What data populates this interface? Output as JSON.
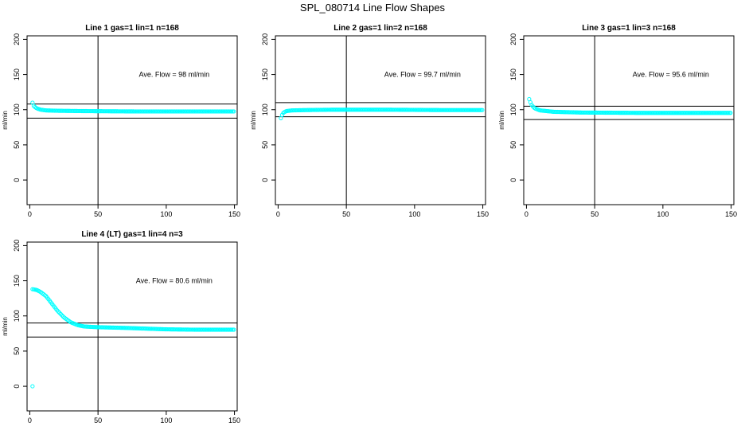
{
  "figure": {
    "title": "SPL_080714  Line Flow Shapes"
  },
  "chart_data": [
    {
      "type": "scatter",
      "title": "Line 1 gas=1 lin=1 n=168",
      "xlabel": "",
      "ylabel": "ml/min",
      "xlim": [
        -2,
        152
      ],
      "ylim": [
        -35,
        205
      ],
      "xticks": [
        0,
        50,
        100,
        150
      ],
      "yticks": [
        0,
        50,
        100,
        150,
        200
      ],
      "annotation": "Ave. Flow =  98  ml/min",
      "vline": 50,
      "hlines": [
        108,
        88
      ],
      "point_color": "#00ffff",
      "curve": [
        [
          2,
          110
        ],
        [
          3,
          105
        ],
        [
          5,
          102
        ],
        [
          8,
          100
        ],
        [
          12,
          99
        ],
        [
          20,
          98.5
        ],
        [
          40,
          98
        ],
        [
          80,
          97.5
        ],
        [
          120,
          97.5
        ],
        [
          150,
          97.5
        ]
      ]
    },
    {
      "type": "scatter",
      "title": "Line 2 gas=1 lin=2 n=168",
      "xlabel": "",
      "ylabel": "ml/min",
      "xlim": [
        -2,
        152
      ],
      "ylim": [
        -35,
        205
      ],
      "xticks": [
        0,
        50,
        100,
        150
      ],
      "yticks": [
        0,
        50,
        100,
        150,
        200
      ],
      "annotation": "Ave. Flow =  99.7  ml/min",
      "vline": 50,
      "hlines": [
        110,
        90
      ],
      "point_color": "#00ffff",
      "curve": [
        [
          2,
          88
        ],
        [
          3,
          93
        ],
        [
          4,
          96
        ],
        [
          6,
          98
        ],
        [
          10,
          99
        ],
        [
          20,
          99.5
        ],
        [
          40,
          100
        ],
        [
          80,
          100
        ],
        [
          120,
          99.5
        ],
        [
          150,
          99.5
        ]
      ]
    },
    {
      "type": "scatter",
      "title": "Line 3 gas=1 lin=3 n=168",
      "xlabel": "",
      "ylabel": "ml/min",
      "xlim": [
        -2,
        152
      ],
      "ylim": [
        -35,
        205
      ],
      "xticks": [
        0,
        50,
        100,
        150
      ],
      "yticks": [
        0,
        50,
        100,
        150,
        200
      ],
      "annotation": "Ave. Flow =  95.6  ml/min",
      "vline": 50,
      "hlines": [
        105,
        86
      ],
      "point_color": "#00ffff",
      "curve": [
        [
          2,
          115
        ],
        [
          3,
          110
        ],
        [
          4,
          106
        ],
        [
          6,
          102
        ],
        [
          10,
          99
        ],
        [
          20,
          97
        ],
        [
          40,
          96
        ],
        [
          80,
          95.5
        ],
        [
          120,
          95.5
        ],
        [
          150,
          95.5
        ]
      ]
    },
    {
      "type": "scatter",
      "title": "Line 4 (LT) gas=1 lin=4 n=3",
      "xlabel": "",
      "ylabel": "ml/min",
      "xlim": [
        -2,
        152
      ],
      "ylim": [
        -35,
        205
      ],
      "xticks": [
        0,
        50,
        100,
        150
      ],
      "yticks": [
        0,
        50,
        100,
        150,
        200
      ],
      "annotation": "Ave. Flow =  80.6  ml/min",
      "vline": 50,
      "hlines": [
        90,
        70
      ],
      "point_color": "#00ffff",
      "outliers": [
        [
          2,
          0
        ]
      ],
      "curve": [
        [
          2,
          138
        ],
        [
          5,
          137
        ],
        [
          8,
          134
        ],
        [
          12,
          128
        ],
        [
          16,
          118
        ],
        [
          20,
          108
        ],
        [
          25,
          98
        ],
        [
          30,
          91
        ],
        [
          35,
          87
        ],
        [
          40,
          85
        ],
        [
          50,
          84
        ],
        [
          70,
          83
        ],
        [
          100,
          81
        ],
        [
          120,
          80.5
        ],
        [
          150,
          80.5
        ]
      ]
    }
  ]
}
